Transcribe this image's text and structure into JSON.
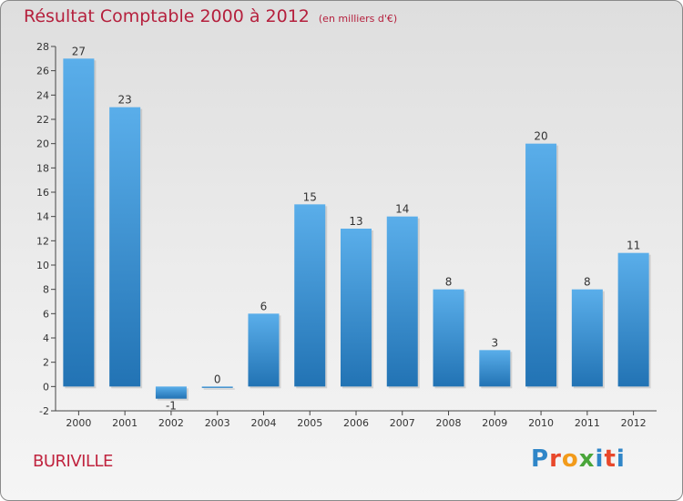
{
  "header": {
    "title": "Résultat Comptable 2000 à 2012",
    "subtitle": "(en milliers d'€)"
  },
  "footer": {
    "commune": "BURIVILLE",
    "logo": "Proxiti"
  },
  "colors": {
    "title": "#b5203d",
    "bar_top": "#5aaeea",
    "bar_bottom": "#2273b4",
    "axis": "#444444"
  },
  "chart_data": {
    "type": "bar",
    "title": "Résultat Comptable 2000 à 2012",
    "subtitle": "(en milliers d'€)",
    "categories": [
      "2000",
      "2001",
      "2002",
      "2003",
      "2004",
      "2005",
      "2006",
      "2007",
      "2008",
      "2009",
      "2010",
      "2011",
      "2012"
    ],
    "values": [
      27,
      23,
      -1,
      0,
      6,
      15,
      13,
      14,
      8,
      3,
      20,
      8,
      11
    ],
    "ylim": [
      -2,
      28
    ],
    "yticks": [
      -2,
      0,
      2,
      4,
      6,
      8,
      10,
      12,
      14,
      16,
      18,
      20,
      22,
      24,
      26,
      28
    ],
    "grid": false,
    "legend": "none"
  }
}
